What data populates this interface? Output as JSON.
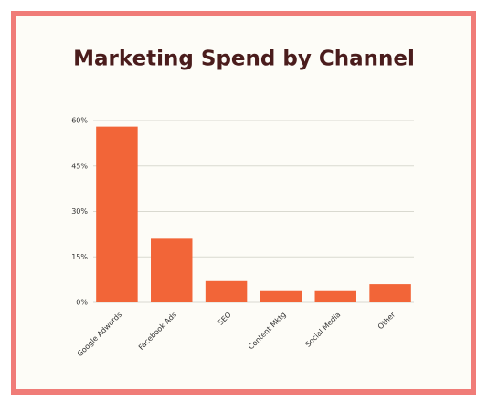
{
  "chart_data": {
    "type": "bar",
    "title": "Marketing Spend by Channel",
    "categories": [
      "Google Adwords",
      "Facebook Ads",
      "SEO",
      "Content Mktg",
      "Social Media",
      "Other"
    ],
    "values": [
      58,
      21,
      7,
      4,
      4,
      6
    ],
    "color": "#f26538",
    "ylim": [
      0,
      60
    ],
    "yticks": [
      {
        "value": 0,
        "label": "0%"
      },
      {
        "value": 15,
        "label": "15%"
      },
      {
        "value": 30,
        "label": "30%"
      },
      {
        "value": 45,
        "label": "45%"
      },
      {
        "value": 60,
        "label": "60%"
      }
    ],
    "grid": true
  }
}
